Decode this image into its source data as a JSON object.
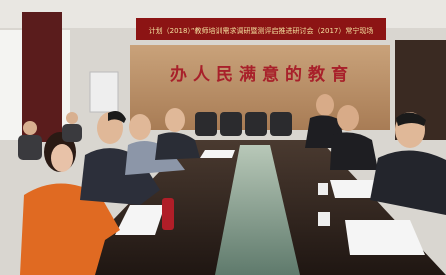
{
  "banner": {
    "text": "计划（2018）”教师培训需求调研暨测评启推进研讨会（2017）常宁现场"
  },
  "slogan": {
    "text": "办人民满意的教育"
  }
}
